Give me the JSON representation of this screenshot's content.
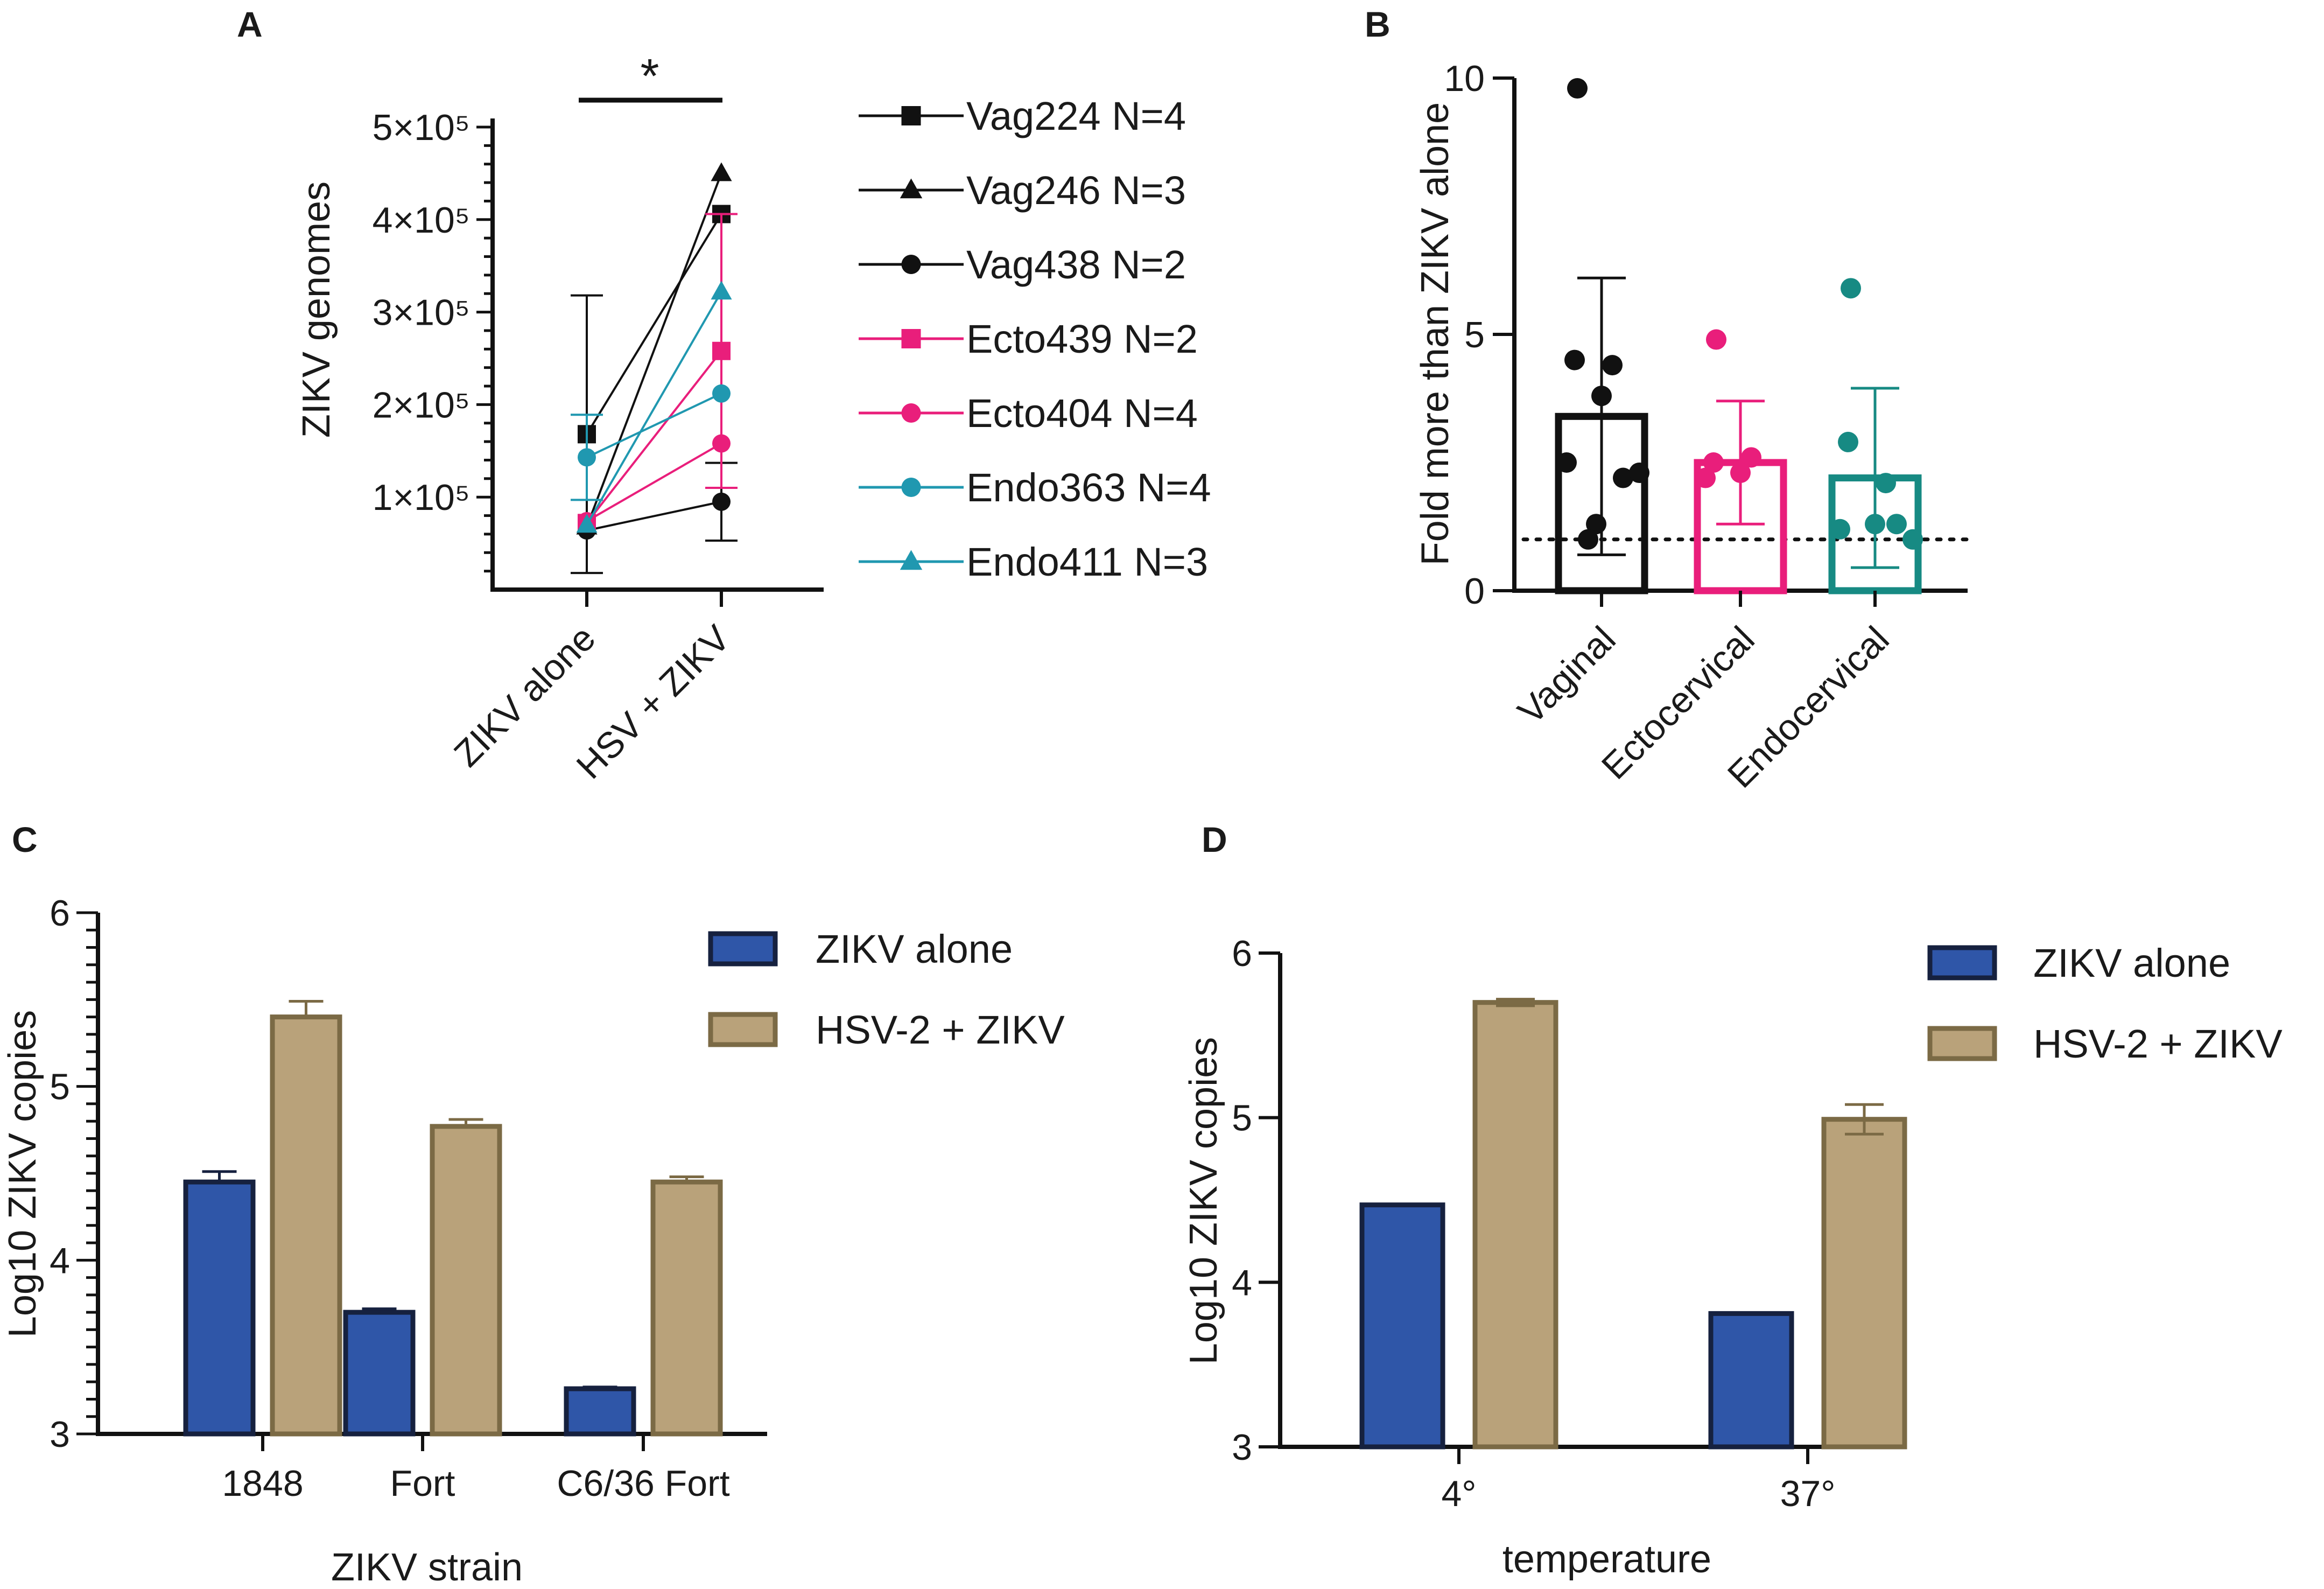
{
  "figure": {
    "panels": [
      "A",
      "B",
      "C",
      "D"
    ]
  },
  "colors": {
    "black": "#111111",
    "pink": "#e91e7b",
    "teal": "#2098b0",
    "darkteal": "#178a83",
    "blue": "#2f56a8",
    "blue_edge": "#16213f",
    "tan": "#b9a27a",
    "tan_edge": "#7b6a45"
  },
  "chart_data": [
    {
      "panel": "A",
      "type": "line",
      "title": "",
      "xlabel": "",
      "ylabel": "ZIKV genomes",
      "categories": [
        "ZIKV alone",
        "HSV + ZIKV"
      ],
      "ylim": [
        0,
        500000
      ],
      "yticks": [
        {
          "value": 100000,
          "label": "1×10⁵"
        },
        {
          "value": 200000,
          "label": "2×10⁵"
        },
        {
          "value": 300000,
          "label": "3×10⁵"
        },
        {
          "value": 400000,
          "label": "4×10⁵"
        },
        {
          "value": 500000,
          "label": "5×10⁵"
        }
      ],
      "significance": "*",
      "series": [
        {
          "name": "Vag224 N=4",
          "color": "#111111",
          "marker": "square",
          "values": [
            168000,
            406000
          ],
          "err": [
            150000,
            0
          ]
        },
        {
          "name": "Vag246 N=3",
          "color": "#111111",
          "marker": "triangle",
          "values": [
            68000,
            450000
          ],
          "err": [
            0,
            0
          ]
        },
        {
          "name": "Vag438 N=2",
          "color": "#111111",
          "marker": "circle",
          "values": [
            64000,
            95000
          ],
          "err": [
            0,
            42000
          ]
        },
        {
          "name": "Ecto439 N=2",
          "color": "#e91e7b",
          "marker": "square",
          "values": [
            72000,
            258000
          ],
          "err": [
            0,
            148000
          ]
        },
        {
          "name": "Ecto404 N=4",
          "color": "#e91e7b",
          "marker": "circle",
          "values": [
            74000,
            158000
          ],
          "err": [
            0,
            0
          ]
        },
        {
          "name": "Endo363 N=4",
          "color": "#2098b0",
          "marker": "circle",
          "values": [
            143000,
            212000
          ],
          "err": [
            46000,
            0
          ]
        },
        {
          "name": "Endo411 N=3",
          "color": "#2098b0",
          "marker": "triangle",
          "values": [
            70000,
            322000
          ],
          "err": [
            0,
            0
          ]
        }
      ]
    },
    {
      "panel": "B",
      "type": "bar",
      "title": "",
      "xlabel": "",
      "ylabel": "Fold more than ZIKV alone",
      "categories": [
        "Vaginal",
        "Ectocervical",
        "Endocervical"
      ],
      "values": [
        3.4,
        2.5,
        2.2
      ],
      "err": [
        2.7,
        1.2,
        1.75
      ],
      "ylim": [
        0,
        10
      ],
      "yticks": [
        0,
        5,
        10
      ],
      "reference_line": 1,
      "bar_colors": [
        "#111111",
        "#e91e7b",
        "#178a83"
      ],
      "points": [
        [
          9.8,
          4.5,
          4.4,
          3.8,
          2.5,
          2.2,
          2.3,
          1.3,
          1.0
        ],
        [
          4.9,
          2.5,
          2.6,
          2.3,
          2.2
        ],
        [
          5.9,
          2.9,
          2.1,
          1.3,
          1.2,
          1.3,
          1.0
        ]
      ]
    },
    {
      "panel": "C",
      "type": "bar",
      "title": "",
      "xlabel": "ZIKV strain",
      "ylabel": "Log10 ZIKV copies",
      "categories": [
        "1848",
        "Fort",
        "C6/36 Fort"
      ],
      "ylim": [
        3,
        6
      ],
      "yticks": [
        3,
        4,
        5,
        6
      ],
      "series": [
        {
          "name": "ZIKV alone",
          "values": [
            4.45,
            3.7,
            3.26
          ],
          "err": [
            0.06,
            0.02,
            0.01
          ]
        },
        {
          "name": "HSV-2 + ZIKV",
          "values": [
            5.4,
            4.77,
            4.45
          ],
          "err": [
            0.09,
            0.04,
            0.03
          ]
        }
      ]
    },
    {
      "panel": "D",
      "type": "bar",
      "title": "",
      "xlabel": "temperature",
      "ylabel": "Log10 ZIKV copies",
      "categories": [
        "4°",
        "37°"
      ],
      "ylim": [
        3,
        6
      ],
      "yticks": [
        3,
        4,
        5,
        6
      ],
      "series": [
        {
          "name": "ZIKV alone",
          "values": [
            4.47,
            3.81
          ],
          "err": [
            0,
            0
          ]
        },
        {
          "name": "HSV-2 + ZIKV",
          "values": [
            5.7,
            4.99
          ],
          "err": [
            0.02,
            0.09
          ]
        }
      ]
    }
  ]
}
